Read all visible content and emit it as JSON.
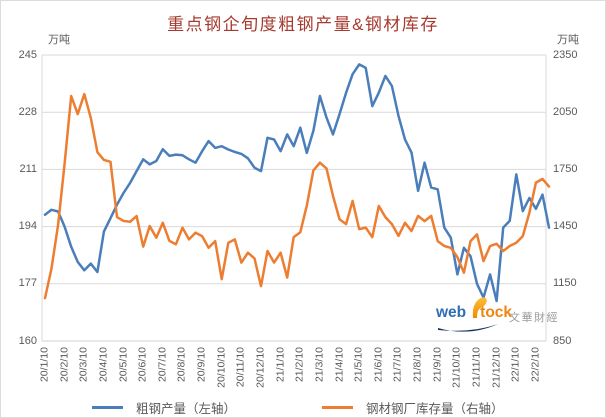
{
  "title": "重点钢企旬度粗钢产量&钢材库存",
  "left_axis": {
    "unit": "万吨",
    "ticks": [
      245,
      228,
      211,
      194,
      177,
      160
    ]
  },
  "right_axis": {
    "unit": "万吨",
    "ticks": [
      2350,
      2050,
      1750,
      1450,
      1150,
      850
    ]
  },
  "chart_data": {
    "type": "line",
    "x_tick_labels": [
      "20/1/10",
      "20/2/10",
      "20/3/10",
      "20/4/10",
      "20/5/10",
      "20/6/10",
      "20/7/10",
      "20/8/10",
      "20/9/10",
      "20/10/10",
      "20/11/10",
      "20/12/10",
      "21/1/10",
      "21/2/10",
      "21/3/10",
      "21/4/10",
      "21/5/10",
      "21/6/10",
      "21/7/10",
      "21/8/10",
      "21/9/10",
      "21/10/10",
      "21/11/10",
      "21/12/10",
      "22/1/10",
      "22/2/10"
    ],
    "points_per_label": 3,
    "left_axis_range": [
      160,
      245
    ],
    "right_axis_range": [
      850,
      2350
    ],
    "grid": true,
    "legend_position": "bottom",
    "series": [
      {
        "name": "粗钢产量（左轴）",
        "axis": "left",
        "color": "#4a7ebb",
        "values": [
          197.5,
          199,
          198.5,
          194,
          188,
          183.5,
          181,
          183,
          180.5,
          192.5,
          196.5,
          200.5,
          204,
          207,
          210.5,
          214,
          212.5,
          213.5,
          217,
          215,
          215.4,
          215.2,
          214,
          213,
          216.4,
          219.4,
          217.4,
          217.9,
          216.9,
          216.2,
          215.6,
          214.3,
          211.5,
          210.5,
          220.4,
          219.9,
          216.4,
          221.4,
          217.9,
          223.4,
          215.9,
          222.5,
          232.8,
          226.4,
          221.4,
          227.4,
          233.8,
          239.3,
          242.2,
          241.2,
          229.8,
          233.8,
          238.8,
          235.8,
          226.9,
          219.9,
          216,
          204.6,
          213,
          205.6,
          205.1,
          193.7,
          190.7,
          179.8,
          187.7,
          185.2,
          177,
          172.9,
          179.8,
          171.9,
          193.7,
          195.7,
          209.5,
          198.6,
          202.5,
          199.3,
          203.5,
          193.7
        ]
      },
      {
        "name": "钢材钢厂库存量（右轴）",
        "axis": "right",
        "color": "#ed7d31",
        "values": [
          1075,
          1230,
          1460,
          1780,
          2135,
          2040,
          2145,
          2020,
          1840,
          1800,
          1790,
          1500,
          1480,
          1475,
          1505,
          1345,
          1453,
          1392,
          1470,
          1375,
          1357,
          1444,
          1383,
          1418,
          1400,
          1339,
          1374,
          1174,
          1365,
          1383,
          1261,
          1313,
          1283,
          1138,
          1322,
          1261,
          1313,
          1183,
          1395,
          1420,
          1560,
          1745,
          1785,
          1755,
          1611,
          1489,
          1463,
          1585,
          1437,
          1445,
          1395,
          1558,
          1500,
          1463,
          1401,
          1470,
          1427,
          1506,
          1479,
          1506,
          1374,
          1348,
          1339,
          1290,
          1208,
          1374,
          1409,
          1269,
          1348,
          1360,
          1322,
          1348,
          1365,
          1400,
          1523,
          1681,
          1700,
          1660
        ]
      }
    ]
  },
  "watermark": {
    "web": "web",
    "tock": "tock",
    "cn": "文華財經"
  },
  "colors": {
    "grid": "#d9d9d9",
    "axis_text": "#595959",
    "title": "#a63a2e"
  }
}
